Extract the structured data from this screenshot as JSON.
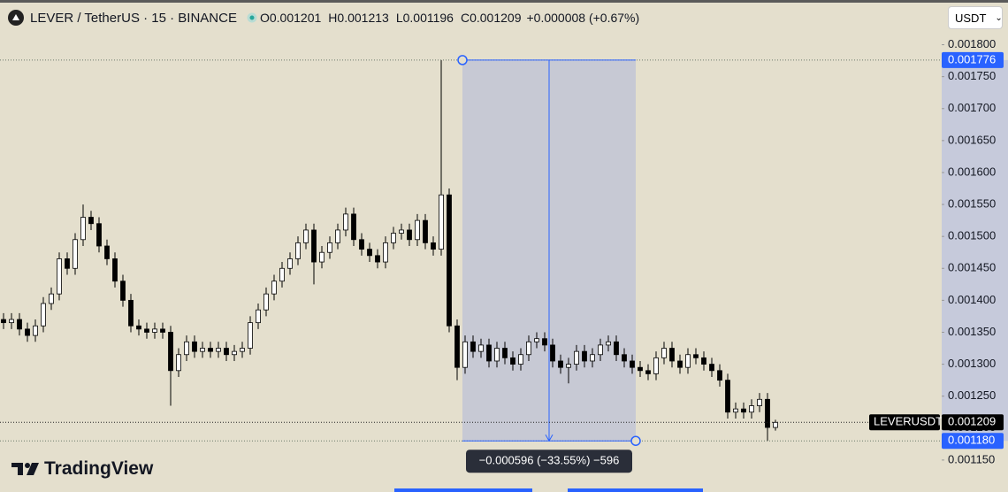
{
  "chart_data": {
    "type": "candlestick",
    "title": "LEVER / TetherUS · 15 · BINANCE",
    "ohlc_legend": [
      {
        "label": "O",
        "value": 0.001201
      },
      {
        "label": "H",
        "value": 0.001213
      },
      {
        "label": "L",
        "value": 0.001196
      },
      {
        "label": "C",
        "value": 0.001209
      }
    ],
    "change": "+0.000008 (+0.67%)",
    "currency": "USDT",
    "brand": "TradingView",
    "up_color": "#ffffff",
    "down_color": "#000000",
    "ylim": [
      0.0011,
      0.00187
    ],
    "yticks": [
      {
        "value": 0.0018,
        "label": "0.001800"
      },
      {
        "value": 0.00175,
        "label": "0.001750"
      },
      {
        "value": 0.0017,
        "label": "0.001700"
      },
      {
        "value": 0.00165,
        "label": "0.001650"
      },
      {
        "value": 0.0016,
        "label": "0.001600"
      },
      {
        "value": 0.00155,
        "label": "0.001550"
      },
      {
        "value": 0.0015,
        "label": "0.001500"
      },
      {
        "value": 0.00145,
        "label": "0.001450"
      },
      {
        "value": 0.0014,
        "label": "0.001400"
      },
      {
        "value": 0.00135,
        "label": "0.001350"
      },
      {
        "value": 0.0013,
        "label": "0.001300"
      },
      {
        "value": 0.00125,
        "label": "0.001250"
      },
      {
        "value": 0.0012,
        "label": "0.001200"
      },
      {
        "value": 0.00115,
        "label": "0.001150"
      }
    ],
    "open": [
      0.00137,
      0.001365,
      0.00137,
      0.001355,
      0.001345,
      0.00136,
      0.001395,
      0.00141,
      0.001465,
      0.00145,
      0.001495,
      0.00153,
      0.00152,
      0.001485,
      0.001465,
      0.00143,
      0.0014,
      0.00136,
      0.001355,
      0.00135,
      0.001355,
      0.00135,
      0.00129,
      0.001315,
      0.001335,
      0.00132,
      0.001325,
      0.00132,
      0.001325,
      0.001315,
      0.00132,
      0.001325,
      0.001365,
      0.001385,
      0.00141,
      0.00143,
      0.00145,
      0.001465,
      0.00149,
      0.00151,
      0.00146,
      0.001475,
      0.00149,
      0.00151,
      0.001535,
      0.001495,
      0.00148,
      0.00147,
      0.00146,
      0.00149,
      0.001505,
      0.00151,
      0.001495,
      0.001525,
      0.00149,
      0.00148,
      0.001565,
      0.00136,
      0.001295,
      0.001335,
      0.00132,
      0.00133,
      0.001305,
      0.001325,
      0.00131,
      0.0013,
      0.001315,
      0.001335,
      0.00134,
      0.00133,
      0.001305,
      0.001295,
      0.0013,
      0.00132,
      0.001305,
      0.001315,
      0.00133,
      0.001335,
      0.001315,
      0.001305,
      0.001295,
      0.00129,
      0.001285,
      0.00131,
      0.001325,
      0.001305,
      0.001295,
      0.001315,
      0.00131,
      0.0013,
      0.00129,
      0.001275,
      0.001225,
      0.00123,
      0.001225,
      0.001235,
      0.001245,
      0.001201
    ],
    "high": [
      0.00138,
      0.00138,
      0.00138,
      0.001365,
      0.00137,
      0.001405,
      0.00142,
      0.001475,
      0.001475,
      0.001505,
      0.00155,
      0.00154,
      0.00153,
      0.001495,
      0.001475,
      0.00144,
      0.00141,
      0.00137,
      0.001365,
      0.001365,
      0.001365,
      0.00136,
      0.001325,
      0.001345,
      0.001345,
      0.001335,
      0.001335,
      0.001335,
      0.001335,
      0.00133,
      0.001335,
      0.001375,
      0.001395,
      0.00142,
      0.00144,
      0.00146,
      0.001475,
      0.0015,
      0.00152,
      0.00152,
      0.001485,
      0.0015,
      0.00152,
      0.001545,
      0.001545,
      0.001505,
      0.00149,
      0.00148,
      0.0015,
      0.001515,
      0.00152,
      0.00152,
      0.001535,
      0.001535,
      0.0015,
      0.001776,
      0.001575,
      0.00137,
      0.001345,
      0.001345,
      0.00134,
      0.00134,
      0.001335,
      0.001335,
      0.00132,
      0.001325,
      0.001345,
      0.00135,
      0.00135,
      0.00134,
      0.001315,
      0.00131,
      0.00133,
      0.00133,
      0.001325,
      0.00134,
      0.001345,
      0.001345,
      0.001325,
      0.001315,
      0.001305,
      0.0013,
      0.00132,
      0.001335,
      0.001335,
      0.001315,
      0.001325,
      0.001325,
      0.00132,
      0.00131,
      0.0013,
      0.001285,
      0.00124,
      0.00124,
      0.001245,
      0.001255,
      0.001255,
      0.001213
    ],
    "low": [
      0.001355,
      0.001355,
      0.001345,
      0.001335,
      0.001335,
      0.00135,
      0.001385,
      0.0014,
      0.00144,
      0.00144,
      0.001485,
      0.00151,
      0.001475,
      0.001455,
      0.00142,
      0.00139,
      0.00135,
      0.001345,
      0.00134,
      0.00134,
      0.00134,
      0.001235,
      0.00128,
      0.001305,
      0.00131,
      0.00131,
      0.00131,
      0.00131,
      0.001305,
      0.001305,
      0.00131,
      0.001315,
      0.001355,
      0.001375,
      0.0014,
      0.00142,
      0.00144,
      0.001455,
      0.00148,
      0.001425,
      0.00145,
      0.001465,
      0.00148,
      0.0015,
      0.001485,
      0.00147,
      0.00146,
      0.00145,
      0.00145,
      0.00148,
      0.001495,
      0.001485,
      0.001485,
      0.00148,
      0.00147,
      0.00147,
      0.00135,
      0.001275,
      0.001285,
      0.00131,
      0.00131,
      0.001295,
      0.001295,
      0.0013,
      0.00129,
      0.00129,
      0.001305,
      0.001325,
      0.00132,
      0.001295,
      0.001285,
      0.00127,
      0.00129,
      0.001295,
      0.001295,
      0.001305,
      0.00132,
      0.001305,
      0.001295,
      0.001285,
      0.00128,
      0.001275,
      0.001275,
      0.0013,
      0.001295,
      0.001285,
      0.001285,
      0.0013,
      0.00129,
      0.00128,
      0.001265,
      0.001215,
      0.001215,
      0.001215,
      0.001215,
      0.001225,
      0.00118,
      0.001196
    ],
    "close": [
      0.001365,
      0.00137,
      0.001355,
      0.001345,
      0.00136,
      0.001395,
      0.00141,
      0.001465,
      0.00145,
      0.001495,
      0.00153,
      0.00152,
      0.001485,
      0.001465,
      0.00143,
      0.0014,
      0.00136,
      0.001355,
      0.00135,
      0.001355,
      0.00135,
      0.00129,
      0.001315,
      0.001335,
      0.00132,
      0.001325,
      0.00132,
      0.001325,
      0.001315,
      0.00132,
      0.001325,
      0.001365,
      0.001385,
      0.00141,
      0.00143,
      0.00145,
      0.001465,
      0.00149,
      0.00151,
      0.00146,
      0.001475,
      0.00149,
      0.00151,
      0.001535,
      0.001495,
      0.00148,
      0.00147,
      0.00146,
      0.00149,
      0.001505,
      0.00151,
      0.001495,
      0.001525,
      0.00149,
      0.00148,
      0.001565,
      0.00136,
      0.001295,
      0.001335,
      0.00132,
      0.00133,
      0.001305,
      0.001325,
      0.00131,
      0.0013,
      0.001315,
      0.001335,
      0.00134,
      0.00133,
      0.001305,
      0.001295,
      0.0013,
      0.00132,
      0.001305,
      0.001315,
      0.00133,
      0.001335,
      0.001315,
      0.001305,
      0.001295,
      0.00129,
      0.001285,
      0.00131,
      0.001325,
      0.001305,
      0.001295,
      0.001315,
      0.00131,
      0.0013,
      0.00129,
      0.001275,
      0.001225,
      0.00123,
      0.001225,
      0.001235,
      0.001245,
      0.001201,
      0.001209
    ],
    "last_price": {
      "name": "LEVERUSDT",
      "value": 0.001209,
      "label": "0.001209"
    },
    "measure": {
      "from": {
        "value": 0.001776,
        "label": "0.001776"
      },
      "to": {
        "value": 0.00118,
        "label": "0.001180"
      },
      "label": "−0.000596 (−33.55%) −596",
      "color": "#2962ff"
    }
  }
}
